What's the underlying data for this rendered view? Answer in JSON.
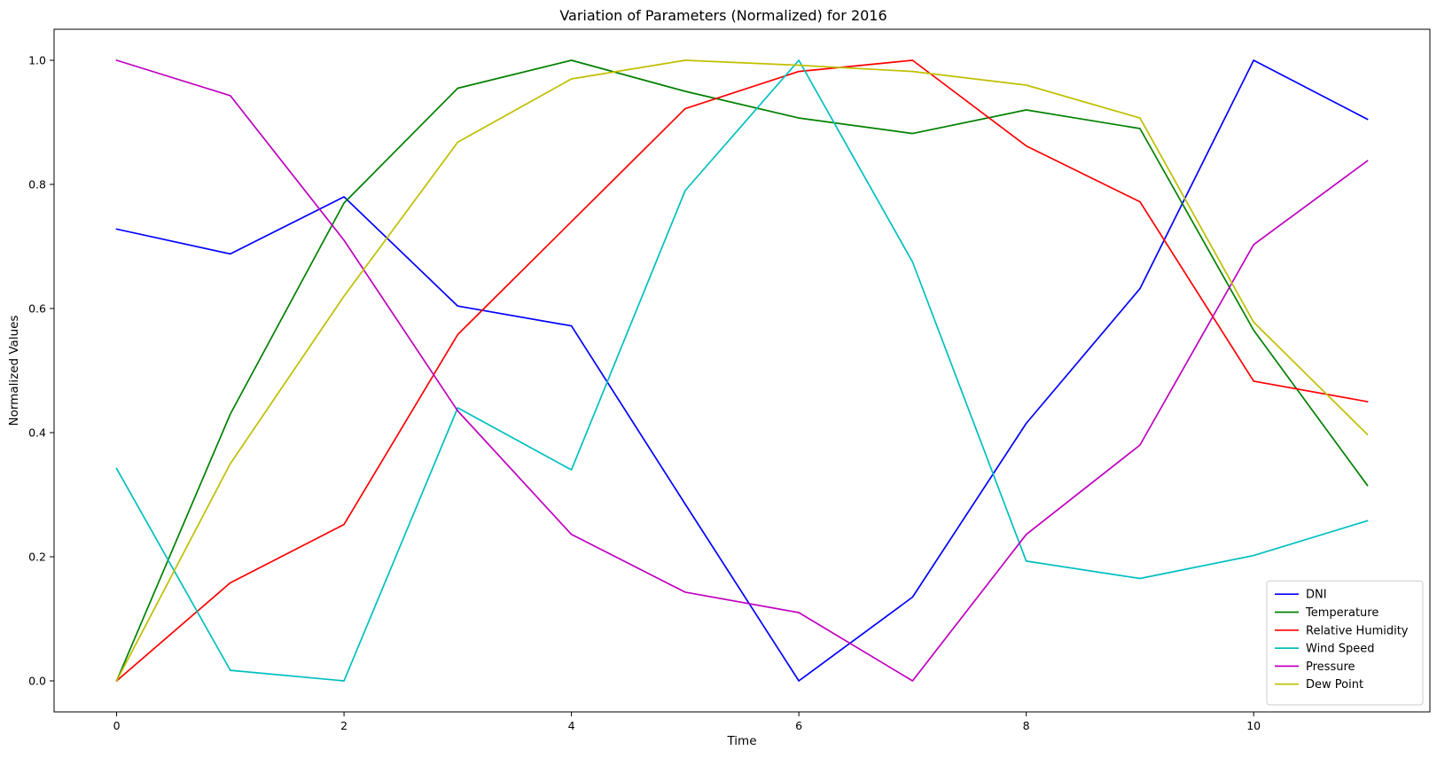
{
  "chart_data": {
    "type": "line",
    "title": "Variation of Parameters (Normalized) for 2016",
    "xlabel": "Time",
    "ylabel": "Normalized Values",
    "xlim": [
      -0.55,
      11.55
    ],
    "ylim": [
      -0.05,
      1.05
    ],
    "xticks": [
      0,
      2,
      4,
      6,
      8,
      10
    ],
    "xtick_labels": [
      "0",
      "2",
      "4",
      "6",
      "8",
      "10"
    ],
    "yticks": [
      0.0,
      0.2,
      0.4,
      0.6,
      0.8,
      1.0
    ],
    "ytick_labels": [
      "0.0",
      "0.2",
      "0.4",
      "0.6",
      "0.8",
      "1.0"
    ],
    "grid": false,
    "legend_position": "lower-right",
    "x": [
      0,
      1,
      2,
      3,
      4,
      5,
      6,
      7,
      8,
      9,
      10,
      11
    ],
    "series": [
      {
        "name": "DNI",
        "color": "#0000ff",
        "values": [
          0.728,
          0.688,
          0.78,
          0.604,
          0.572,
          0.285,
          0.0,
          0.135,
          0.415,
          0.632,
          1.0,
          0.905
        ]
      },
      {
        "name": "Temperature",
        "color": "#008000",
        "values": [
          0.0,
          0.43,
          0.77,
          0.955,
          1.0,
          0.95,
          0.907,
          0.882,
          0.92,
          0.89,
          0.565,
          0.315
        ]
      },
      {
        "name": "Relative Humidity",
        "color": "#ff0000",
        "values": [
          0.0,
          0.158,
          0.252,
          0.558,
          0.74,
          0.922,
          0.982,
          1.0,
          0.862,
          0.772,
          0.483,
          0.45
        ]
      },
      {
        "name": "Wind Speed",
        "color": "#00bfbf",
        "values": [
          0.342,
          0.017,
          0.0,
          0.44,
          0.34,
          0.79,
          1.0,
          0.675,
          0.193,
          0.165,
          0.202,
          0.258
        ]
      },
      {
        "name": "Pressure",
        "color": "#bf00bf",
        "values": [
          1.0,
          0.943,
          0.71,
          0.435,
          0.236,
          0.143,
          0.11,
          0.0,
          0.236,
          0.38,
          0.703,
          0.838
        ]
      },
      {
        "name": "Dew Point",
        "color": "#bfbf00",
        "values": [
          0.0,
          0.35,
          0.62,
          0.868,
          0.97,
          1.0,
          0.992,
          0.982,
          0.96,
          0.907,
          0.578,
          0.397
        ]
      }
    ]
  }
}
